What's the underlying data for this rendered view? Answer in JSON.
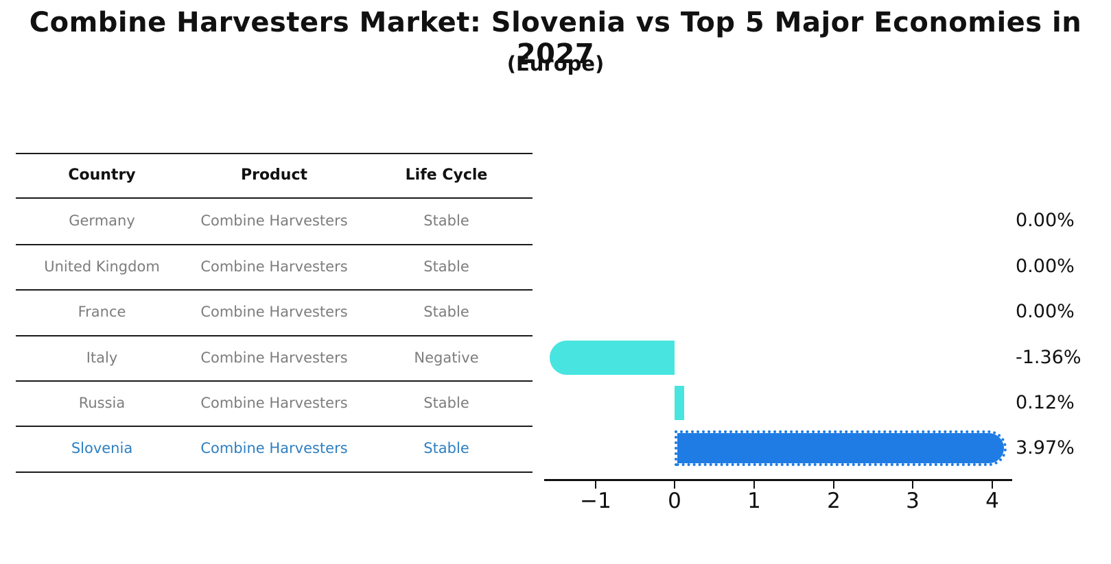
{
  "title": "Combine Harvesters Market: Slovenia vs Top 5 Major Economies in 2027",
  "subtitle": "(Europe)",
  "table": {
    "headers": [
      "Country",
      "Product",
      "Life Cycle"
    ],
    "rows": [
      {
        "country": "Germany",
        "product": "Combine Harvesters",
        "life_cycle": "Stable"
      },
      {
        "country": "United Kingdom",
        "product": "Combine Harvesters",
        "life_cycle": "Stable"
      },
      {
        "country": "France",
        "product": "Combine Harvesters",
        "life_cycle": "Stable"
      },
      {
        "country": "Italy",
        "product": "Combine Harvesters",
        "life_cycle": "Negative"
      },
      {
        "country": "Russia",
        "product": "Combine Harvesters",
        "life_cycle": "Stable"
      },
      {
        "country": "Slovenia",
        "product": "Combine Harvesters",
        "life_cycle": "Stable"
      }
    ],
    "highlight_row": "Slovenia"
  },
  "chart_data": {
    "type": "bar",
    "orientation": "horizontal",
    "categories": [
      "Germany",
      "United Kingdom",
      "France",
      "Italy",
      "Russia",
      "Slovenia"
    ],
    "values": [
      0.0,
      0.0,
      0.0,
      -1.36,
      0.12,
      3.97
    ],
    "value_labels": [
      "0.00%",
      "0.00%",
      "0.00%",
      "-1.36%",
      "0.12%",
      "3.97%"
    ],
    "x_ticks": [
      -1,
      0,
      1,
      2,
      3,
      4
    ],
    "x_tick_labels": [
      "−1",
      "0",
      "1",
      "2",
      "3",
      "4"
    ],
    "xlim": [
      -1.65,
      4.3
    ],
    "ylabel": "",
    "xlabel": "",
    "grid": false,
    "legend": false,
    "bar_color_default": "#48e5e0",
    "bar_color_highlight": "#1f7ce4",
    "highlight_category": "Slovenia",
    "highlight_edge_style": "dotted",
    "unit": "percent"
  },
  "colors": {
    "background": "#ffffff",
    "table_text": "#7d7d7d",
    "table_header_text": "#111111",
    "highlight_text": "#2e7fc1",
    "axis": "#111111",
    "bar_default": "#48e5e0",
    "bar_highlight": "#1f7ce4"
  }
}
